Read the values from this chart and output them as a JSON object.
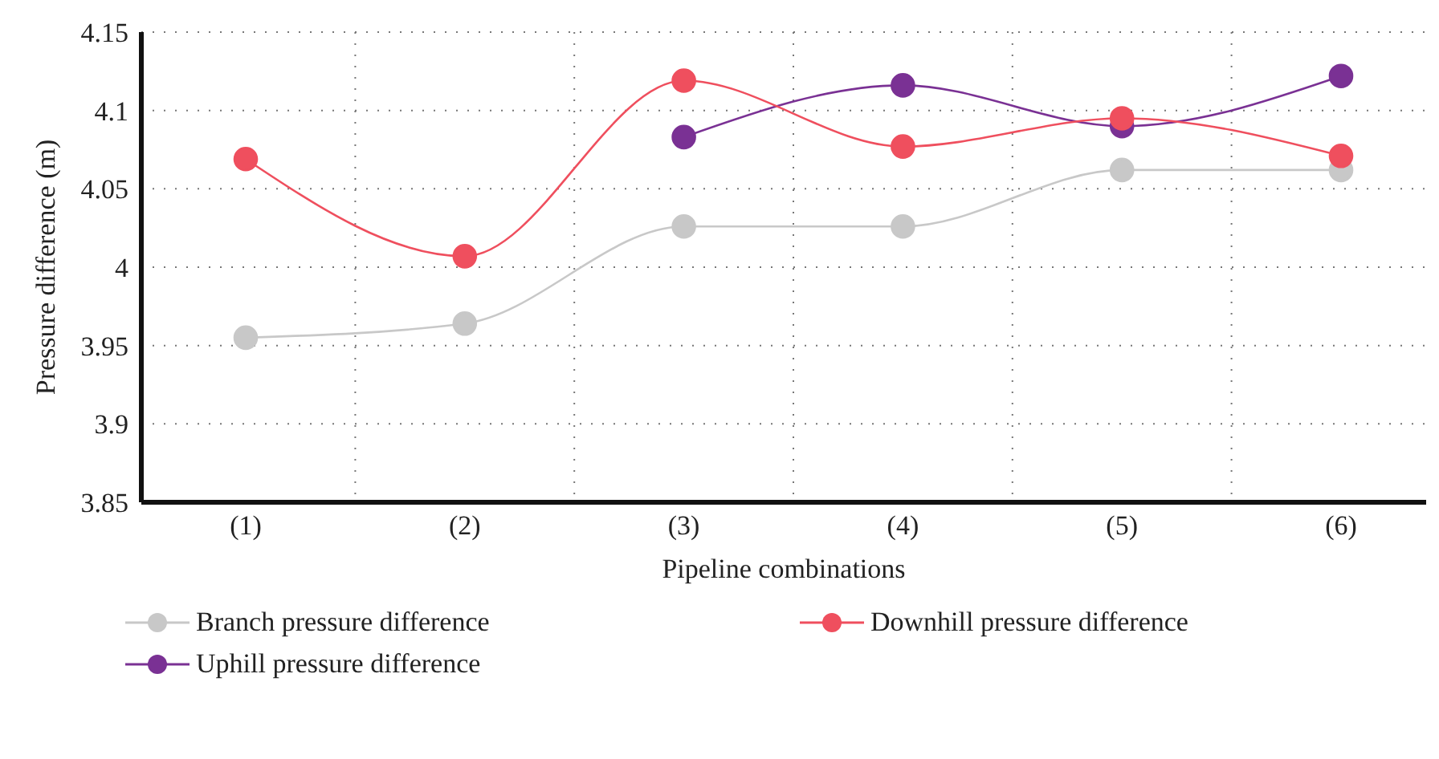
{
  "chart_data": {
    "type": "line",
    "xlabel": "Pipeline combinations",
    "ylabel": "Pressure difference (m)",
    "categories": [
      "(1)",
      "(2)",
      "(3)",
      "(4)",
      "(5)",
      "(6)"
    ],
    "series": [
      {
        "name": "Branch pressure difference",
        "color": "#c8c8c8",
        "values": [
          3.955,
          3.964,
          4.026,
          4.026,
          4.062,
          4.062
        ]
      },
      {
        "name": "Downhill pressure difference",
        "color": "#ef4f5e",
        "values": [
          4.069,
          4.007,
          4.119,
          4.077,
          4.095,
          4.071
        ]
      },
      {
        "name": "Uphill pressure difference",
        "color": "#7a3194",
        "values": [
          null,
          null,
          4.083,
          4.116,
          4.09,
          4.122
        ]
      }
    ],
    "ylim": [
      3.85,
      4.15
    ],
    "yticks": [
      3.85,
      3.9,
      3.95,
      4,
      4.05,
      4.1,
      4.15
    ],
    "grid": true,
    "legend": "bottom",
    "marker": "circle",
    "line_style": "solid"
  }
}
